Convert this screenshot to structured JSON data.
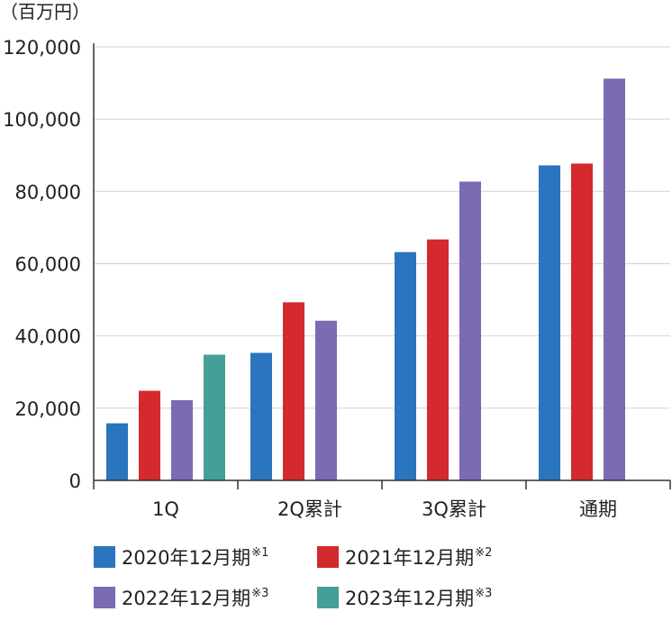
{
  "chart_data": {
    "type": "bar",
    "unit": "（百万円）",
    "categories": [
      "1Q",
      "2Q累計",
      "3Q累計",
      "通期"
    ],
    "series": [
      {
        "name": "2020年12月期",
        "note": "※1",
        "color": "#2b74be",
        "values": [
          15800,
          35300,
          63200,
          87200
        ]
      },
      {
        "name": "2021年12月期",
        "note": "※2",
        "color": "#d22a2d",
        "values": [
          24800,
          49300,
          66700,
          87700
        ]
      },
      {
        "name": "2022年12月期",
        "note": "※3",
        "color": "#7a6bb2",
        "values": [
          22200,
          44200,
          82700,
          111200
        ]
      },
      {
        "name": "2023年12月期",
        "note": "※3",
        "color": "#44a097",
        "values": [
          34800,
          null,
          null,
          null
        ]
      }
    ],
    "yticks": [
      "0",
      "20,000",
      "40,000",
      "60,000",
      "80,000",
      "100,000",
      "120,000"
    ],
    "ylim": [
      0,
      120000
    ],
    "grid": true,
    "legend_position": "bottom-left",
    "colors": {
      "axis": "#333333",
      "grid": "#d8d8d8"
    }
  }
}
